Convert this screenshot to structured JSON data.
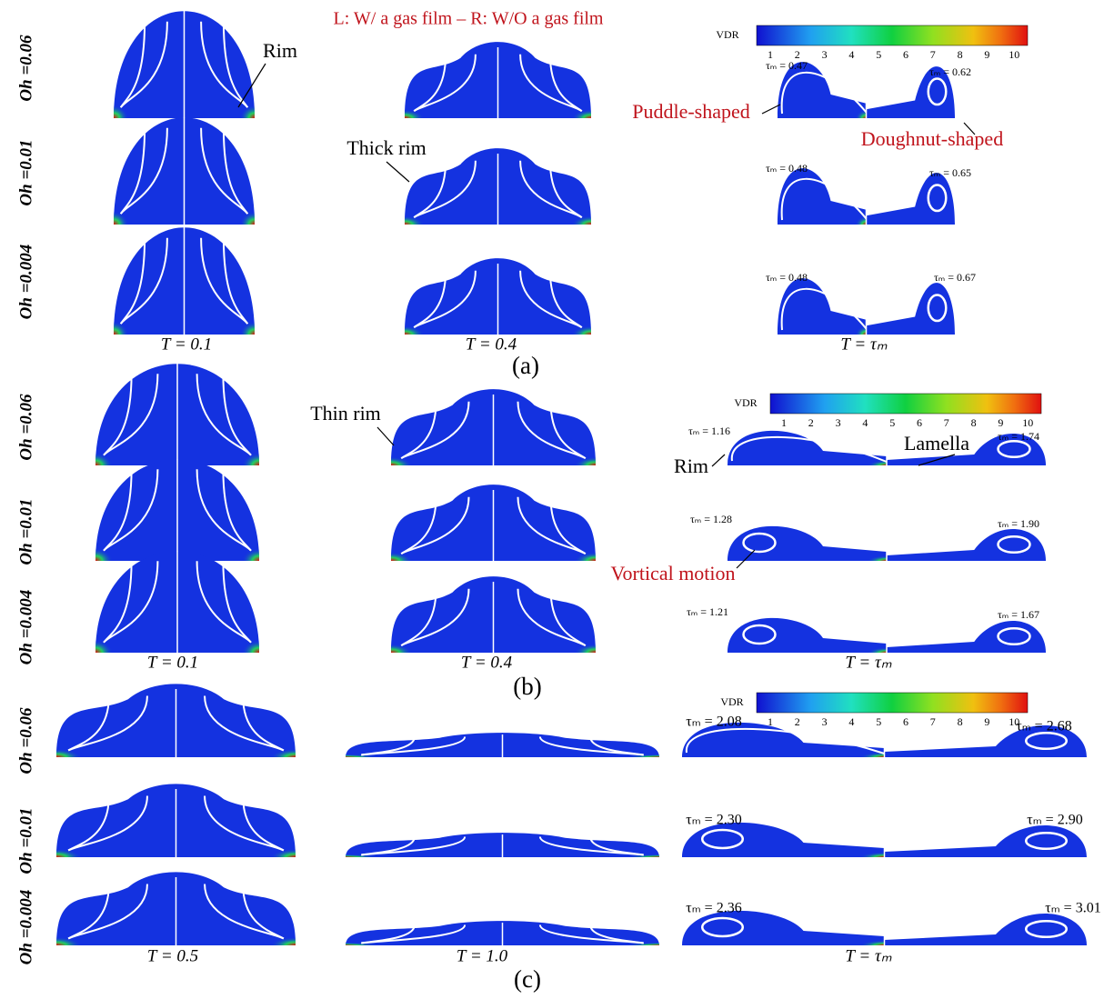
{
  "header": "L: W/ a gas film – R: W/O a gas film",
  "colorbar": {
    "label": "VDR",
    "ticks": [
      "1",
      "2",
      "3",
      "4",
      "5",
      "6",
      "7",
      "8",
      "9",
      "10"
    ]
  },
  "panels": [
    {
      "label": "(a)",
      "columns": [
        "T = 0.1",
        "T = 0.4",
        "T = τₘ"
      ],
      "rows": [
        {
          "oh": "Oh =0.06",
          "tau_left": "τₘ = 0.47",
          "tau_right": "τₘ = 0.62"
        },
        {
          "oh": "Oh =0.01",
          "tau_left": "τₘ = 0.48",
          "tau_right": "τₘ = 0.65"
        },
        {
          "oh": "Oh =0.004",
          "tau_left": "τₘ = 0.48",
          "tau_right": "τₘ = 0.67"
        }
      ],
      "annotations": [
        "Rim",
        "Thick rim",
        "Puddle-shaped",
        "Doughnut-shaped"
      ]
    },
    {
      "label": "(b)",
      "columns": [
        "T = 0.1",
        "T = 0.4",
        "T = τₘ"
      ],
      "rows": [
        {
          "oh": "Oh =0.06",
          "tau_left": "τₘ = 1.16",
          "tau_right": "τₘ = 1.74"
        },
        {
          "oh": "Oh =0.01",
          "tau_left": "τₘ = 1.28",
          "tau_right": "τₘ = 1.90"
        },
        {
          "oh": "Oh =0.004",
          "tau_left": "τₘ = 1.21",
          "tau_right": "τₘ = 1.67"
        }
      ],
      "annotations": [
        "Thin rim",
        "Rim",
        "Lamella",
        "Vortical motion"
      ]
    },
    {
      "label": "(c)",
      "columns": [
        "T = 0.5",
        "T = 1.0",
        "T = τₘ"
      ],
      "rows": [
        {
          "oh": "Oh =0.06",
          "tau_left": "τₘ = 2.08",
          "tau_right": "τₘ = 2.68"
        },
        {
          "oh": "Oh =0.01",
          "tau_left": "τₘ = 2.30",
          "tau_right": "τₘ = 2.90"
        },
        {
          "oh": "Oh =0.004",
          "tau_left": "τₘ = 2.36",
          "tau_right": "τₘ = 3.01"
        }
      ],
      "annotations": []
    }
  ]
}
